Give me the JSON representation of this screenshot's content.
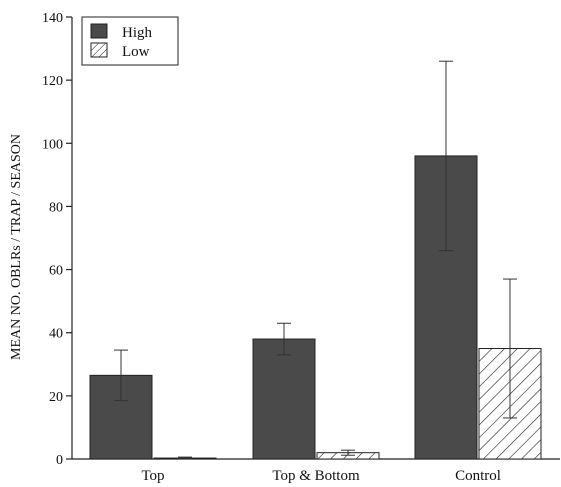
{
  "chart_data": {
    "type": "bar",
    "title": "",
    "xlabel": "",
    "ylabel": "MEAN NO. OBLRs / TRAP / SEASON",
    "categories": [
      "Top",
      "Top & Bottom",
      "Control"
    ],
    "ylim": [
      0,
      140
    ],
    "yticks": [
      0,
      20,
      40,
      60,
      80,
      100,
      120,
      140
    ],
    "series": [
      {
        "name": "High",
        "values": [
          26.5,
          38,
          96
        ],
        "error": [
          8,
          5,
          30
        ],
        "fill": "#4a4a4a",
        "pattern": "solid"
      },
      {
        "name": "Low",
        "values": [
          0.3,
          2,
          35
        ],
        "error": [
          0.3,
          0.8,
          22
        ],
        "fill": "#ffffff",
        "pattern": "diagonal-hatch"
      }
    ],
    "legend": {
      "position": "top-left"
    },
    "grid": false
  }
}
